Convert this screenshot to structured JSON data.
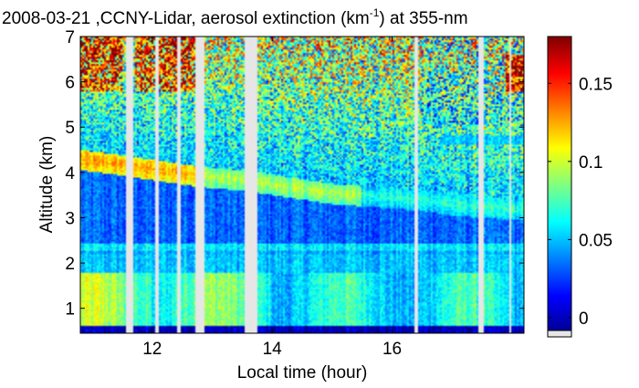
{
  "chart_data": {
    "type": "heatmap",
    "title_prefix": "2008-03-21 ,CCNY-Lidar, aerosol extinction (km",
    "title_sup": "-1",
    "title_suffix": ") at 355-nm",
    "xlabel": "Local time (hour)",
    "ylabel": "Altitude (km)",
    "xlim": [
      10.8,
      18.2
    ],
    "ylim": [
      0.45,
      7.0
    ],
    "x_ticks": [
      12,
      14,
      16
    ],
    "x_tick_labels": [
      "12",
      "14",
      "16"
    ],
    "y_ticks": [
      1,
      2,
      3,
      4,
      5,
      6,
      7
    ],
    "y_tick_labels": [
      "1",
      "2",
      "3",
      "4",
      "5",
      "6",
      "7"
    ],
    "colorbar": {
      "colormap": "jet",
      "range": [
        -0.01,
        0.18
      ],
      "ticks": [
        0,
        0.05,
        0.1,
        0.15
      ],
      "tick_labels": [
        "0",
        "0.05",
        "0.1",
        "0.15"
      ]
    },
    "data_gaps_hours": [
      [
        11.55,
        11.68
      ],
      [
        12.06,
        12.12
      ],
      [
        12.42,
        12.48
      ],
      [
        12.73,
        12.87
      ],
      [
        13.53,
        13.75
      ],
      [
        16.38,
        16.43
      ],
      [
        17.43,
        17.52
      ],
      [
        17.95,
        18.0
      ]
    ],
    "aerosol_layer_top_km": {
      "x": [
        10.8,
        11.5,
        12.0,
        12.5,
        13.0,
        13.5,
        14.0,
        14.5,
        15.0,
        15.5,
        16.0,
        16.5,
        17.0,
        17.5,
        18.0,
        18.2
      ],
      "y": [
        4.4,
        4.28,
        4.18,
        4.08,
        4.0,
        3.95,
        3.85,
        3.75,
        3.65,
        3.6,
        3.55,
        3.5,
        3.4,
        3.35,
        3.3,
        3.3
      ]
    }
  }
}
